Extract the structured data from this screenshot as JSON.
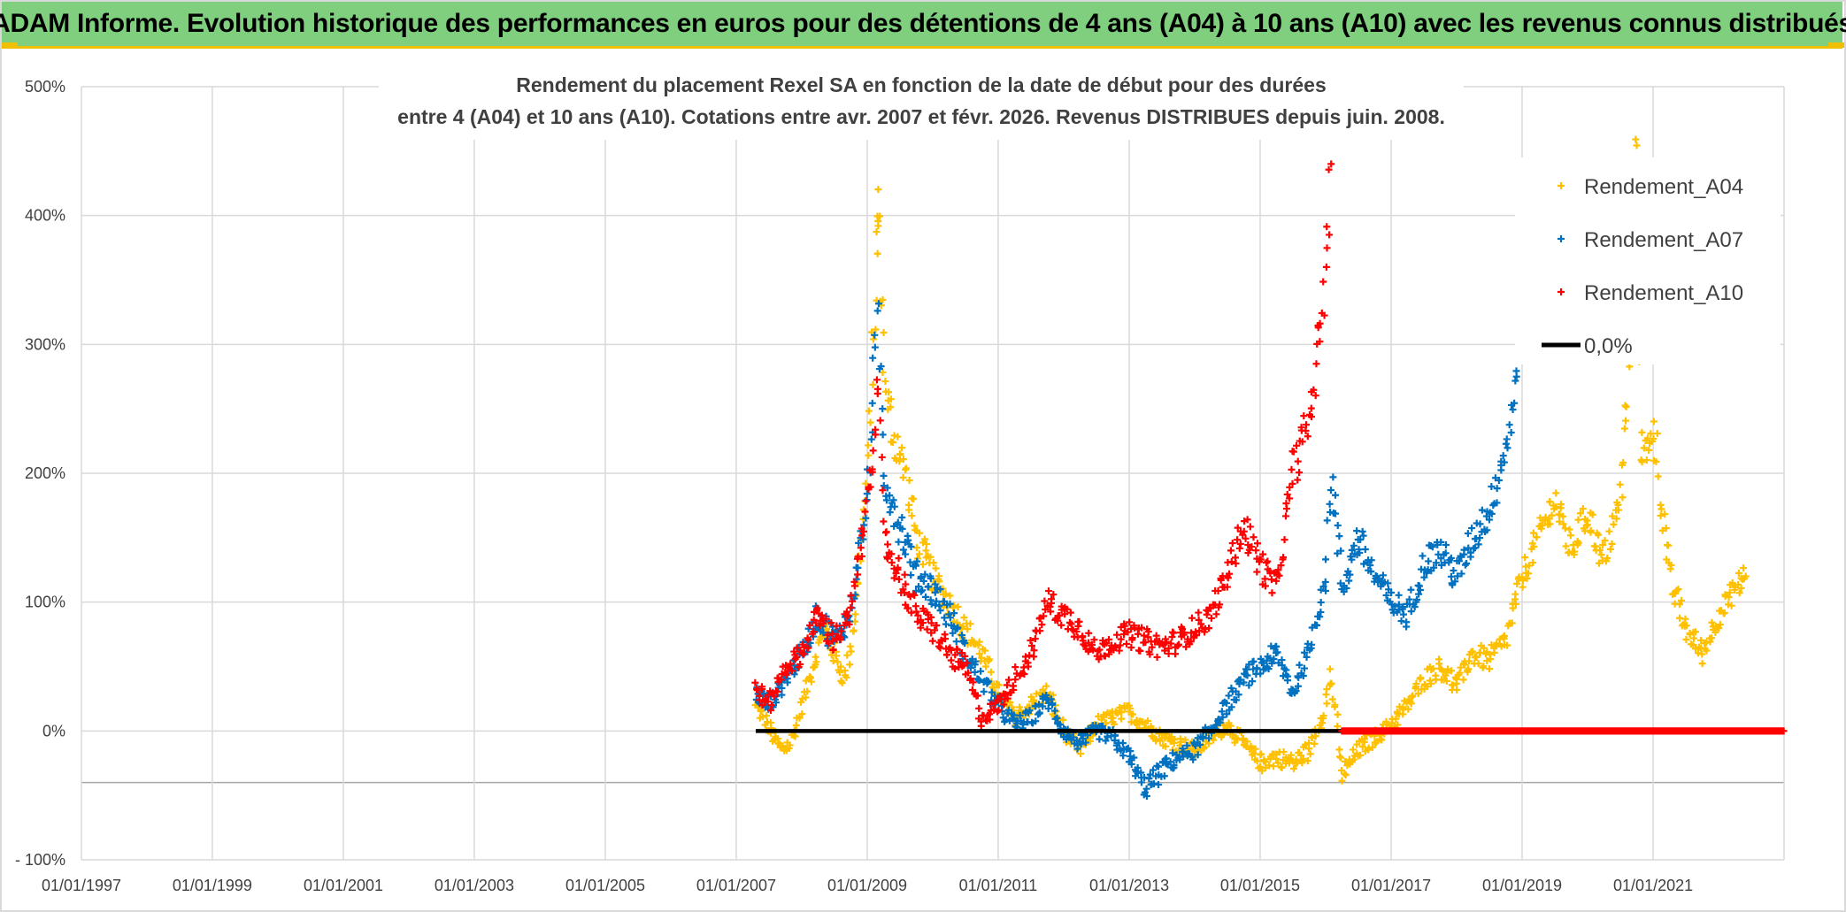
{
  "banner": {
    "title": "ADAM Informe. Evolution historique des performances en euros pour des détentions de 4 ans (A04) à 10 ans (A10) avec les revenus connus distribués"
  },
  "colors": {
    "banner_bg": "#7fcf7f",
    "banner_border": "#f0c000",
    "series_A04": "#ffc000",
    "series_A07": "#0070c0",
    "series_A10": "#ff0000",
    "zero_line": "#000000",
    "grid": "#d9d9d9"
  },
  "chart_data": {
    "type": "scatter",
    "title_lines": [
      "Rendement du placement Rexel SA en fonction de la date de début pour des durées",
      "entre 4 (A04) et 10 ans (A10). Cotations entre avr. 2007 et févr. 2026. Revenus DISTRIBUES depuis juin. 2008."
    ],
    "xlabel": "",
    "ylabel": "",
    "x_range": [
      "1997-01-01",
      "2023-01-01"
    ],
    "ylim": [
      -100,
      500
    ],
    "x_ticks": [
      "01/01/1997",
      "01/01/1999",
      "01/01/2001",
      "01/01/2003",
      "01/01/2005",
      "01/01/2007",
      "01/01/2009",
      "01/01/2011",
      "01/01/2013",
      "01/01/2015",
      "01/01/2017",
      "01/01/2019",
      "01/01/2021"
    ],
    "y_ticks": [
      "- 100%",
      "0%",
      "100%",
      "200%",
      "300%",
      "400%",
      "500%"
    ],
    "grid": true,
    "legend_position": "top-right",
    "marker": "+",
    "series": [
      {
        "name": "Rendement_A04",
        "color_key": "series_A04",
        "points": [
          [
            "2007-04-20",
            18
          ],
          [
            "2007-06-01",
            10
          ],
          [
            "2007-08-01",
            -5
          ],
          [
            "2007-09-15",
            -15
          ],
          [
            "2007-11-01",
            -10
          ],
          [
            "2008-01-01",
            20
          ],
          [
            "2008-03-01",
            50
          ],
          [
            "2008-05-01",
            80
          ],
          [
            "2008-07-01",
            60
          ],
          [
            "2008-09-01",
            40
          ],
          [
            "2008-11-01",
            100
          ],
          [
            "2009-01-01",
            200
          ],
          [
            "2009-02-01",
            290
          ],
          [
            "2009-02-20",
            360
          ],
          [
            "2009-03-01",
            415
          ],
          [
            "2009-03-15",
            340
          ],
          [
            "2009-04-15",
            260
          ],
          [
            "2009-06-01",
            230
          ],
          [
            "2009-08-01",
            200
          ],
          [
            "2009-10-01",
            150
          ],
          [
            "2010-01-01",
            120
          ],
          [
            "2010-04-01",
            100
          ],
          [
            "2010-07-01",
            80
          ],
          [
            "2010-10-01",
            60
          ],
          [
            "2011-01-01",
            30
          ],
          [
            "2011-04-01",
            10
          ],
          [
            "2011-07-01",
            20
          ],
          [
            "2011-10-01",
            30
          ],
          [
            "2012-01-01",
            0
          ],
          [
            "2012-04-01",
            -15
          ],
          [
            "2012-07-01",
            5
          ],
          [
            "2012-10-01",
            10
          ],
          [
            "2013-01-01",
            15
          ],
          [
            "2013-04-01",
            5
          ],
          [
            "2013-07-01",
            -5
          ],
          [
            "2013-10-01",
            -10
          ],
          [
            "2014-01-01",
            -15
          ],
          [
            "2014-04-01",
            -5
          ],
          [
            "2014-07-01",
            5
          ],
          [
            "2014-10-01",
            -10
          ],
          [
            "2015-01-01",
            -25
          ],
          [
            "2015-04-01",
            -20
          ],
          [
            "2015-07-01",
            -25
          ],
          [
            "2015-10-01",
            -15
          ],
          [
            "2016-01-01",
            20
          ],
          [
            "2016-02-01",
            45
          ],
          [
            "2016-04-01",
            -35
          ],
          [
            "2016-07-01",
            -15
          ],
          [
            "2016-10-01",
            -5
          ],
          [
            "2017-01-01",
            5
          ],
          [
            "2017-04-01",
            20
          ],
          [
            "2017-07-01",
            40
          ],
          [
            "2017-10-01",
            50
          ],
          [
            "2018-01-01",
            35
          ],
          [
            "2018-04-01",
            60
          ],
          [
            "2018-07-01",
            55
          ],
          [
            "2018-10-01",
            70
          ],
          [
            "2019-01-01",
            120
          ],
          [
            "2019-04-01",
            150
          ],
          [
            "2019-07-01",
            180
          ],
          [
            "2019-10-01",
            140
          ],
          [
            "2020-01-01",
            170
          ],
          [
            "2020-04-01",
            130
          ],
          [
            "2020-07-01",
            180
          ],
          [
            "2020-08-15",
            270
          ],
          [
            "2020-10-01",
            460
          ],
          [
            "2020-11-01",
            200
          ],
          [
            "2021-01-01",
            240
          ],
          [
            "2021-04-01",
            120
          ],
          [
            "2021-07-01",
            80
          ],
          [
            "2021-10-01",
            60
          ],
          [
            "2022-01-01",
            90
          ],
          [
            "2022-04-01",
            110
          ],
          [
            "2022-06-01",
            120
          ]
        ]
      },
      {
        "name": "Rendement_A07",
        "color_key": "series_A07",
        "points": [
          [
            "2007-04-20",
            30
          ],
          [
            "2007-07-01",
            20
          ],
          [
            "2007-10-01",
            40
          ],
          [
            "2008-01-01",
            60
          ],
          [
            "2008-04-01",
            90
          ],
          [
            "2008-07-01",
            70
          ],
          [
            "2008-10-01",
            90
          ],
          [
            "2009-01-01",
            180
          ],
          [
            "2009-02-01",
            260
          ],
          [
            "2009-03-01",
            320
          ],
          [
            "2009-04-01",
            200
          ],
          [
            "2009-07-01",
            160
          ],
          [
            "2009-10-01",
            120
          ],
          [
            "2010-01-01",
            110
          ],
          [
            "2010-04-01",
            90
          ],
          [
            "2010-07-01",
            60
          ],
          [
            "2010-10-01",
            40
          ],
          [
            "2011-01-01",
            20
          ],
          [
            "2011-04-01",
            5
          ],
          [
            "2011-07-01",
            10
          ],
          [
            "2011-10-01",
            25
          ],
          [
            "2012-01-01",
            0
          ],
          [
            "2012-04-01",
            -10
          ],
          [
            "2012-07-01",
            0
          ],
          [
            "2012-10-01",
            -5
          ],
          [
            "2013-01-01",
            -20
          ],
          [
            "2013-04-01",
            -45
          ],
          [
            "2013-07-01",
            -30
          ],
          [
            "2013-10-01",
            -20
          ],
          [
            "2014-01-01",
            -15
          ],
          [
            "2014-04-01",
            0
          ],
          [
            "2014-07-01",
            20
          ],
          [
            "2014-10-01",
            40
          ],
          [
            "2015-01-01",
            50
          ],
          [
            "2015-04-01",
            60
          ],
          [
            "2015-07-01",
            30
          ],
          [
            "2015-10-01",
            60
          ],
          [
            "2016-01-01",
            120
          ],
          [
            "2016-02-01",
            200
          ],
          [
            "2016-04-01",
            110
          ],
          [
            "2016-07-01",
            150
          ],
          [
            "2016-10-01",
            120
          ],
          [
            "2017-01-01",
            100
          ],
          [
            "2017-04-01",
            90
          ],
          [
            "2017-07-01",
            130
          ],
          [
            "2017-10-01",
            140
          ],
          [
            "2018-01-01",
            120
          ],
          [
            "2018-04-01",
            150
          ],
          [
            "2018-07-01",
            170
          ],
          [
            "2018-10-01",
            220
          ],
          [
            "2018-12-01",
            275
          ]
        ]
      },
      {
        "name": "Rendement_A10",
        "color_key": "series_A10",
        "points": [
          [
            "2007-04-20",
            35
          ],
          [
            "2007-07-01",
            20
          ],
          [
            "2007-10-01",
            50
          ],
          [
            "2008-01-01",
            60
          ],
          [
            "2008-04-01",
            90
          ],
          [
            "2008-07-01",
            70
          ],
          [
            "2008-10-01",
            90
          ],
          [
            "2009-01-01",
            180
          ],
          [
            "2009-02-01",
            220
          ],
          [
            "2009-03-01",
            270
          ],
          [
            "2009-04-01",
            150
          ],
          [
            "2009-07-01",
            120
          ],
          [
            "2009-10-01",
            90
          ],
          [
            "2010-01-01",
            80
          ],
          [
            "2010-04-01",
            60
          ],
          [
            "2010-07-01",
            50
          ],
          [
            "2010-10-01",
            10
          ],
          [
            "2011-01-01",
            20
          ],
          [
            "2011-04-01",
            40
          ],
          [
            "2011-07-01",
            60
          ],
          [
            "2011-10-01",
            100
          ],
          [
            "2012-01-01",
            90
          ],
          [
            "2012-04-01",
            80
          ],
          [
            "2012-07-01",
            60
          ],
          [
            "2012-10-01",
            70
          ],
          [
            "2013-01-01",
            75
          ],
          [
            "2013-04-01",
            70
          ],
          [
            "2013-07-01",
            65
          ],
          [
            "2013-10-01",
            70
          ],
          [
            "2014-01-01",
            80
          ],
          [
            "2014-04-01",
            90
          ],
          [
            "2014-07-01",
            120
          ],
          [
            "2014-10-01",
            160
          ],
          [
            "2015-01-01",
            130
          ],
          [
            "2015-04-01",
            110
          ],
          [
            "2015-07-01",
            200
          ],
          [
            "2015-10-01",
            240
          ],
          [
            "2016-01-01",
            350
          ],
          [
            "2016-02-01",
            440
          ]
        ]
      },
      {
        "name": "0,0%",
        "color_key": "zero_line",
        "line_x": [
          "2007-04-20",
          "2016-04-01"
        ],
        "value": 0
      }
    ],
    "zero_markers_A10": {
      "x": [
        "2016-04-01",
        "2023-01-01"
      ],
      "value": 0
    }
  }
}
